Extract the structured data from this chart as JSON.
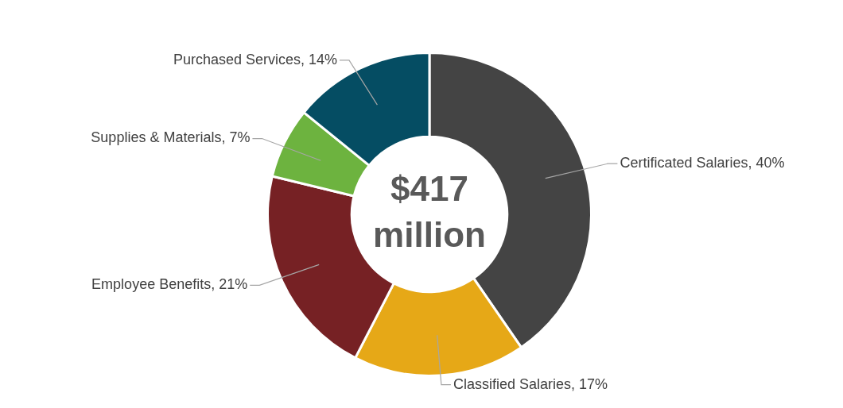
{
  "chart_data": {
    "type": "donut",
    "categories": [
      "Certificated Salaries",
      "Classified Salaries",
      "Employee Benefits",
      "Supplies & Materials",
      "Purchased Services"
    ],
    "values": [
      40,
      17,
      21,
      7,
      14
    ],
    "value_labels": [
      "40%",
      "17%",
      "21%",
      "7%",
      "14%"
    ],
    "colors": [
      "#444444",
      "#e6a817",
      "#762124",
      "#6db33f",
      "#054d63"
    ],
    "legend": false,
    "annotations": [
      "$417 million"
    ]
  }
}
